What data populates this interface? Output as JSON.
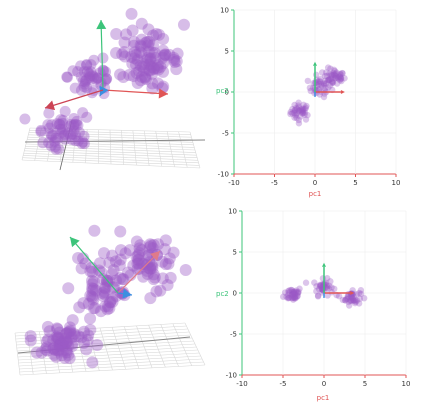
{
  "colors": {
    "point": "#9b59c6",
    "pc1_axis": "#e05555",
    "pc2_axis": "#3cc47a",
    "pc3_axis": "#3d8fe0",
    "grid": "#d8d8d8",
    "floor_line": "#888888"
  },
  "panels": [
    {
      "id": "top-3d",
      "view": "3d",
      "description_icons": [
        "pc1-arrow",
        "pc2-arrow",
        "pc3-arrow"
      ]
    },
    {
      "id": "top-2d",
      "xlabel": "pc1",
      "ylabel": "pc2",
      "xticks": [
        "-10",
        "-5",
        "0",
        "5",
        "10"
      ],
      "yticks": [
        "10",
        "5",
        "0",
        "-5",
        "-10"
      ]
    },
    {
      "id": "bottom-3d",
      "view": "3d",
      "description_icons": [
        "pc1-arrow",
        "pc2-arrow",
        "pc3-arrow"
      ]
    },
    {
      "id": "bottom-2d",
      "xlabel": "pc1",
      "ylabel": "pc2",
      "xticks": [
        "-10",
        "-5",
        "0",
        "5",
        "10"
      ],
      "yticks": [
        "10",
        "5",
        "0",
        "-5",
        "-10"
      ]
    }
  ],
  "chart_data": [
    {
      "type": "scatter",
      "title": "",
      "xlabel": "pc1",
      "ylabel": "pc2",
      "xlim": [
        -10,
        10
      ],
      "ylim": [
        -10,
        10
      ],
      "grid": false,
      "series": [
        {
          "clusters": [
            {
              "center": [
                -1.8,
                -2.4
              ],
              "spread": [
                1.0,
                0.9
              ],
              "count": 40
            },
            {
              "center": [
                0.6,
                0.6
              ],
              "spread": [
                1.2,
                1.0
              ],
              "count": 40
            },
            {
              "center": [
                2.4,
                1.8
              ],
              "spread": [
                1.1,
                0.9
              ],
              "count": 45
            }
          ]
        }
      ]
    },
    {
      "type": "scatter",
      "title": "",
      "xlabel": "pc1",
      "ylabel": "pc2",
      "xlim": [
        -10,
        10
      ],
      "ylim": [
        -10,
        10
      ],
      "grid": false,
      "series": [
        {
          "clusters": [
            {
              "center": [
                -3.8,
                -0.1
              ],
              "spread": [
                0.9,
                0.7
              ],
              "count": 40
            },
            {
              "center": [
                -0.1,
                0.7
              ],
              "spread": [
                1.0,
                0.8
              ],
              "count": 40
            },
            {
              "center": [
                3.4,
                -0.5
              ],
              "spread": [
                0.9,
                0.8
              ],
              "count": 40
            }
          ]
        }
      ]
    }
  ]
}
